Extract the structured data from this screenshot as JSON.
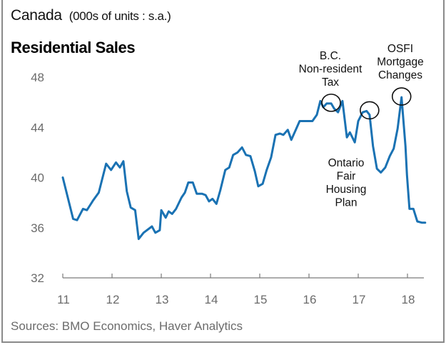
{
  "header": {
    "region": "Canada",
    "units": "(000s of units : s.a.)",
    "title": "Residential Sales"
  },
  "footer": {
    "source": "Sources: BMO Economics, Haver Analytics"
  },
  "colors": {
    "line": "#1a72b3",
    "axis": "#7a7a7a",
    "tick_text": "#6b6b6b",
    "frame": "#8a8a8a"
  },
  "chart_data": {
    "type": "line",
    "title": "Residential Sales",
    "subtitle": "Canada (000s of units : s.a.)",
    "xlabel": "",
    "ylabel": "",
    "ylim": [
      32,
      48
    ],
    "yticks": [
      32,
      36,
      40,
      44,
      48
    ],
    "xlim": [
      2011.0,
      2018.42
    ],
    "xticks": [
      2011,
      2012,
      2013,
      2014,
      2015,
      2016,
      2017,
      2018
    ],
    "xtick_labels": [
      "11",
      "12",
      "13",
      "14",
      "15",
      "16",
      "17",
      "18"
    ],
    "grid": false,
    "legend": "none",
    "series": [
      {
        "name": "Residential Sales",
        "x": [
          2011.0,
          2011.21,
          2011.29,
          2011.41,
          2011.49,
          2011.62,
          2011.73,
          2011.88,
          2011.98,
          2012.08,
          2012.16,
          2012.23,
          2012.3,
          2012.38,
          2012.47,
          2012.54,
          2012.64,
          2012.81,
          2012.88,
          2012.97,
          2013.0,
          2013.09,
          2013.15,
          2013.22,
          2013.3,
          2013.41,
          2013.48,
          2013.55,
          2013.64,
          2013.72,
          2013.83,
          2013.9,
          2013.97,
          2014.04,
          2014.12,
          2014.2,
          2014.3,
          2014.38,
          2014.46,
          2014.55,
          2014.64,
          2014.72,
          2014.81,
          2014.9,
          2014.97,
          2015.06,
          2015.14,
          2015.23,
          2015.32,
          2015.41,
          2015.48,
          2015.57,
          2015.64,
          2015.72,
          2015.81,
          2015.9,
          2015.99,
          2016.07,
          2016.16,
          2016.23,
          2016.29,
          2016.36,
          2016.45,
          2016.51,
          2016.59,
          2016.68,
          2016.77,
          2016.83,
          2016.93,
          2017.0,
          2017.09,
          2017.17,
          2017.23,
          2017.3,
          2017.38,
          2017.46,
          2017.55,
          2017.64,
          2017.72,
          2017.8,
          2017.88,
          2017.96,
          2017.99,
          2018.04,
          2018.12,
          2018.2,
          2018.29,
          2018.36
        ],
        "values": [
          40.0,
          36.7,
          36.6,
          37.5,
          37.4,
          38.2,
          38.8,
          41.1,
          40.6,
          41.2,
          40.8,
          41.3,
          38.9,
          37.6,
          37.4,
          35.1,
          35.6,
          36.1,
          35.6,
          35.8,
          37.4,
          36.8,
          37.3,
          37.1,
          37.5,
          38.4,
          38.8,
          39.6,
          39.6,
          38.7,
          38.7,
          38.6,
          38.1,
          38.3,
          37.9,
          39.0,
          40.6,
          40.8,
          41.8,
          42.0,
          42.4,
          41.8,
          41.7,
          40.5,
          39.3,
          39.5,
          40.6,
          41.6,
          43.4,
          43.5,
          43.4,
          43.8,
          43.0,
          43.7,
          44.5,
          44.5,
          44.5,
          44.5,
          45.0,
          46.1,
          45.6,
          45.9,
          45.9,
          45.5,
          45.2,
          46.1,
          43.2,
          43.6,
          42.8,
          44.5,
          45.2,
          45.3,
          45.0,
          42.5,
          40.7,
          40.4,
          40.8,
          41.7,
          42.3,
          43.9,
          46.4,
          42.5,
          40.2,
          37.5,
          37.5,
          36.5,
          36.4,
          36.4
        ]
      }
    ],
    "annotations": [
      {
        "id": "bc-tax",
        "lines": [
          "B.C.",
          "Non-resident",
          "Tax"
        ],
        "x": 2016.45,
        "y": 45.9
      },
      {
        "id": "ontario-plan",
        "lines": [
          "Ontario",
          "Fair",
          "Housing",
          "Plan"
        ],
        "x": 2017.23,
        "y": 45.3
      },
      {
        "id": "osfi",
        "lines": [
          "OSFI",
          "Mortgage",
          "Changes"
        ],
        "x": 2017.88,
        "y": 46.4
      }
    ]
  }
}
